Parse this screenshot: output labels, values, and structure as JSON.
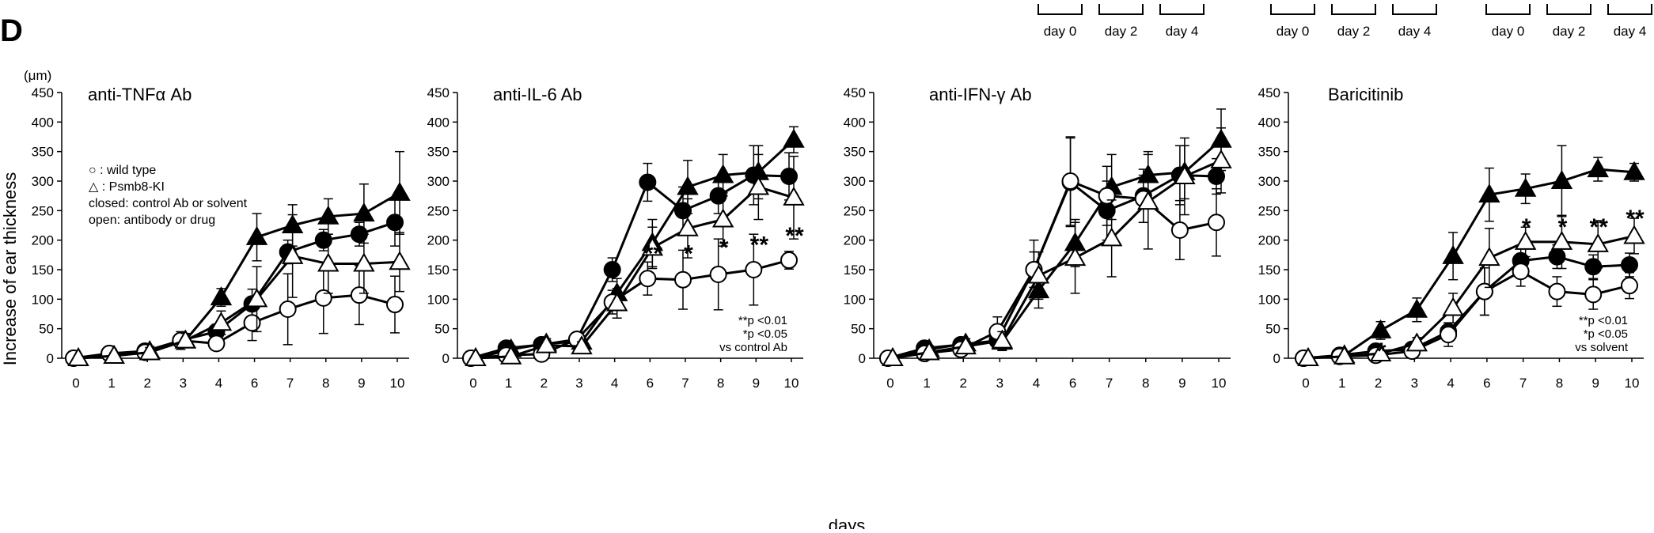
{
  "figure": {
    "panel_letter": "D",
    "unit": "(μm)",
    "ylabel": "Increase of ear thickness",
    "xlabel": "days",
    "schedule_label_sets": [
      [
        "day 0",
        "day 2",
        "day 4"
      ],
      [
        "day 0",
        "day 2",
        "day 4"
      ],
      [
        "day 0",
        "day 2",
        "day 4"
      ]
    ],
    "legend": {
      "lines": [
        "○ : wild type",
        "△ : Psmb8-KI",
        "closed: control Ab or solvent",
        "open: antibody or drug"
      ]
    },
    "colors": {
      "ink": "#000000",
      "open_fill": "#ffffff"
    }
  },
  "chart_data": [
    {
      "type": "line",
      "title": "anti-TNFα Ab",
      "x": [
        0,
        1,
        2,
        3,
        4,
        6,
        7,
        8,
        9,
        10
      ],
      "ylim": [
        0,
        450
      ],
      "yticks": [
        0,
        50,
        100,
        150,
        200,
        250,
        300,
        350,
        400,
        450
      ],
      "series": [
        {
          "marker": "filled-circle",
          "values": [
            0,
            8,
            12,
            30,
            45,
            92,
            180,
            200,
            210,
            230
          ],
          "err": [
            3,
            6,
            10,
            10,
            12,
            25,
            20,
            18,
            20,
            40
          ]
        },
        {
          "marker": "filled-triangle",
          "values": [
            0,
            4,
            12,
            30,
            103,
            205,
            225,
            240,
            245,
            280
          ],
          "err": [
            3,
            6,
            8,
            10,
            15,
            40,
            35,
            30,
            50,
            70
          ]
        },
        {
          "marker": "open-circle",
          "values": [
            0,
            8,
            10,
            30,
            25,
            60,
            83,
            102,
            107,
            91
          ],
          "err": [
            3,
            5,
            6,
            15,
            10,
            30,
            60,
            60,
            50,
            48
          ]
        },
        {
          "marker": "open-triangle",
          "values": [
            0,
            4,
            10,
            30,
            60,
            100,
            173,
            160,
            160,
            163
          ],
          "err": [
            3,
            5,
            8,
            12,
            20,
            55,
            70,
            50,
            50,
            50
          ]
        }
      ],
      "stars": [],
      "note": []
    },
    {
      "type": "line",
      "title": "anti-IL-6 Ab",
      "x": [
        0,
        1,
        2,
        3,
        4,
        6,
        7,
        8,
        9,
        10
      ],
      "ylim": [
        0,
        450
      ],
      "yticks": [
        0,
        50,
        100,
        150,
        200,
        250,
        300,
        350,
        400,
        450
      ],
      "series": [
        {
          "marker": "filled-circle",
          "values": [
            0,
            17,
            23,
            32,
            150,
            298,
            250,
            275,
            310,
            308
          ],
          "err": [
            3,
            6,
            8,
            10,
            20,
            32,
            40,
            30,
            50,
            40
          ]
        },
        {
          "marker": "filled-triangle",
          "values": [
            0,
            15,
            25,
            28,
            110,
            195,
            290,
            310,
            315,
            370
          ],
          "err": [
            3,
            6,
            8,
            10,
            25,
            40,
            45,
            35,
            45,
            22
          ]
        },
        {
          "marker": "open-circle",
          "values": [
            0,
            5,
            7,
            32,
            95,
            135,
            133,
            142,
            150,
            166
          ],
          "err": [
            3,
            5,
            5,
            10,
            20,
            28,
            50,
            60,
            60,
            15
          ]
        },
        {
          "marker": "open-triangle",
          "values": [
            0,
            3,
            22,
            20,
            93,
            187,
            220,
            235,
            290,
            272
          ],
          "err": [
            3,
            5,
            8,
            8,
            25,
            35,
            50,
            45,
            55,
            70
          ]
        }
      ],
      "stars": [
        {
          "text": "**",
          "x": 6,
          "y": 180
        },
        {
          "text": "*",
          "x": 7,
          "y": 180
        },
        {
          "text": "*",
          "x": 8,
          "y": 190
        },
        {
          "text": "**",
          "x": 9,
          "y": 195
        },
        {
          "text": "**",
          "x": 10,
          "y": 210
        }
      ],
      "note": [
        "**p <0.01",
        "*p <0.05",
        "vs control Ab"
      ]
    },
    {
      "type": "line",
      "title": "anti-IFN-γ Ab",
      "x": [
        0,
        1,
        2,
        3,
        4,
        6,
        7,
        8,
        9,
        10
      ],
      "ylim": [
        0,
        450
      ],
      "yticks": [
        0,
        50,
        100,
        150,
        200,
        250,
        300,
        350,
        400,
        450
      ],
      "series": [
        {
          "marker": "filled-circle",
          "values": [
            0,
            17,
            23,
            30,
            150,
            298,
            250,
            275,
            310,
            308
          ],
          "err": [
            3,
            6,
            8,
            10,
            30,
            75,
            50,
            45,
            50,
            30
          ]
        },
        {
          "marker": "filled-triangle",
          "values": [
            0,
            15,
            25,
            28,
            115,
            195,
            290,
            310,
            315,
            370
          ],
          "err": [
            3,
            6,
            8,
            15,
            30,
            40,
            55,
            40,
            45,
            52
          ]
        },
        {
          "marker": "open-circle",
          "values": [
            0,
            8,
            15,
            45,
            150,
            300,
            275,
            270,
            217,
            230
          ],
          "err": [
            3,
            5,
            5,
            25,
            50,
            75,
            50,
            40,
            50,
            57
          ]
        },
        {
          "marker": "open-triangle",
          "values": [
            0,
            10,
            20,
            30,
            140,
            170,
            203,
            265,
            308,
            335
          ],
          "err": [
            3,
            5,
            8,
            15,
            40,
            60,
            65,
            80,
            65,
            55
          ]
        }
      ],
      "stars": [],
      "note": []
    },
    {
      "type": "line",
      "title": "Baricitinib",
      "x": [
        0,
        1,
        2,
        3,
        4,
        6,
        7,
        8,
        9,
        10
      ],
      "ylim": [
        0,
        450
      ],
      "yticks": [
        0,
        50,
        100,
        150,
        200,
        250,
        300,
        350,
        400,
        450
      ],
      "series": [
        {
          "marker": "filled-circle",
          "values": [
            0,
            5,
            12,
            15,
            45,
            113,
            165,
            172,
            155,
            158
          ],
          "err": [
            3,
            4,
            5,
            8,
            15,
            40,
            25,
            20,
            20,
            20
          ]
        },
        {
          "marker": "filled-triangle",
          "values": [
            0,
            5,
            47,
            82,
            173,
            277,
            287,
            300,
            320,
            315
          ],
          "err": [
            3,
            4,
            15,
            20,
            40,
            45,
            25,
            60,
            20,
            15
          ]
        },
        {
          "marker": "open-circle",
          "values": [
            0,
            3,
            5,
            12,
            40,
            113,
            147,
            113,
            108,
            123
          ],
          "err": [
            3,
            3,
            5,
            8,
            20,
            40,
            25,
            25,
            25,
            22
          ]
        },
        {
          "marker": "open-triangle",
          "values": [
            0,
            3,
            8,
            25,
            85,
            170,
            197,
            197,
            193,
            207
          ],
          "err": [
            3,
            3,
            5,
            10,
            25,
            50,
            25,
            45,
            40,
            30
          ]
        }
      ],
      "stars": [
        {
          "text": "*",
          "x": 2,
          "y": 15
        },
        {
          "text": "*",
          "x": 7,
          "y": 225
        },
        {
          "text": "*",
          "x": 8,
          "y": 225
        },
        {
          "text": "**",
          "x": 9,
          "y": 225
        },
        {
          "text": "**",
          "x": 10,
          "y": 240
        }
      ],
      "note": [
        "**p <0.01",
        "*p <0.05",
        "vs solvent"
      ]
    }
  ]
}
